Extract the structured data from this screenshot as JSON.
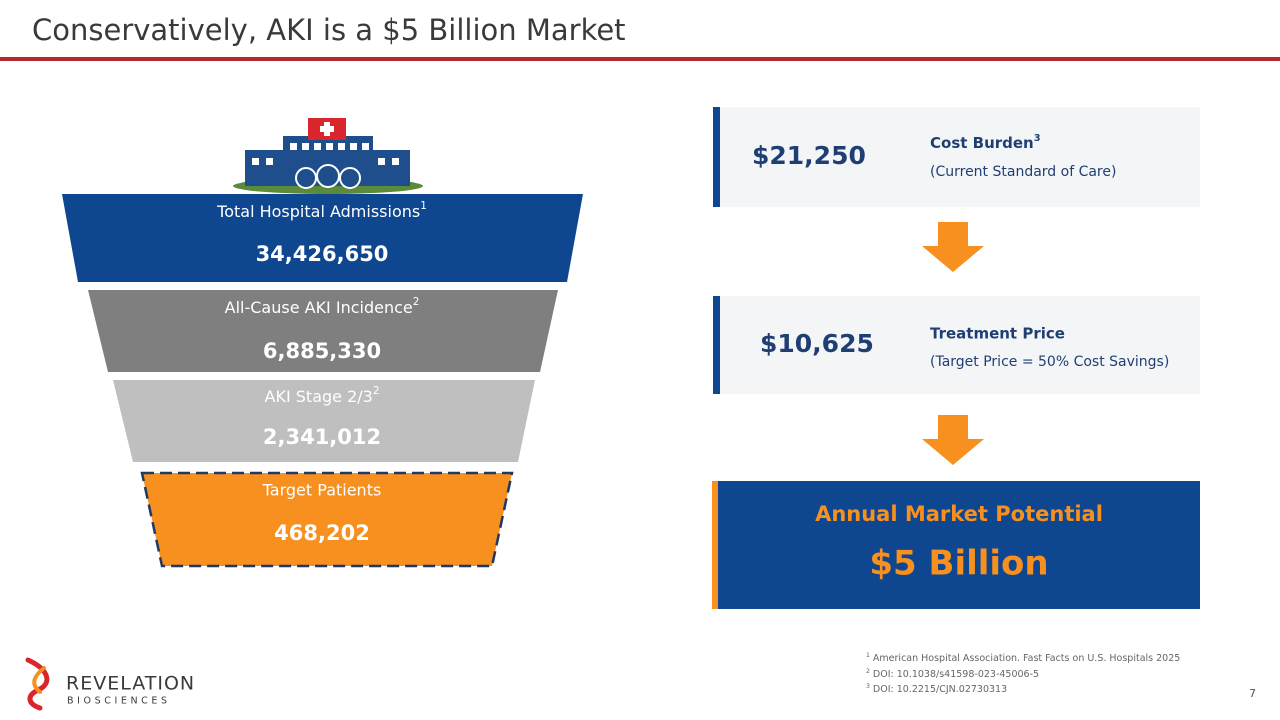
{
  "header": {
    "title": "Conservatively, AKI is a $5 Billion Market"
  },
  "funnel": {
    "levels": [
      {
        "label": "Total Hospital Admissions",
        "ref": "1",
        "value": "34,426,650"
      },
      {
        "label": "All-Cause AKI Incidence",
        "ref": "2",
        "value": "6,885,330"
      },
      {
        "label": "AKI Stage 2/3",
        "ref": "2",
        "value": "2,341,012"
      },
      {
        "label": "Target Patients",
        "value": "468,202"
      }
    ]
  },
  "cards": [
    {
      "value": "$21,250",
      "title": "Cost Burden",
      "ref": "3",
      "subtitle": "(Current Standard of Care)"
    },
    {
      "value": "$10,625",
      "title": "Treatment Price",
      "subtitle": "(Target Price = 50% Cost Savings)"
    }
  ],
  "result": {
    "title": "Annual Market Potential",
    "value": "$5 Billion"
  },
  "footnotes": [
    {
      "ref": "1",
      "text": "American Hospital Association. Fast Facts on U.S. Hospitals 2025"
    },
    {
      "ref": "2",
      "text": "DOI: 10.1038/s41598-023-45006-5"
    },
    {
      "ref": "3",
      "text": "DOI: 10.2215/CJN.02730313"
    }
  ],
  "logo": {
    "name": "REVELATION",
    "tagline": "BIOSCIENCES"
  },
  "page_number": "7"
}
